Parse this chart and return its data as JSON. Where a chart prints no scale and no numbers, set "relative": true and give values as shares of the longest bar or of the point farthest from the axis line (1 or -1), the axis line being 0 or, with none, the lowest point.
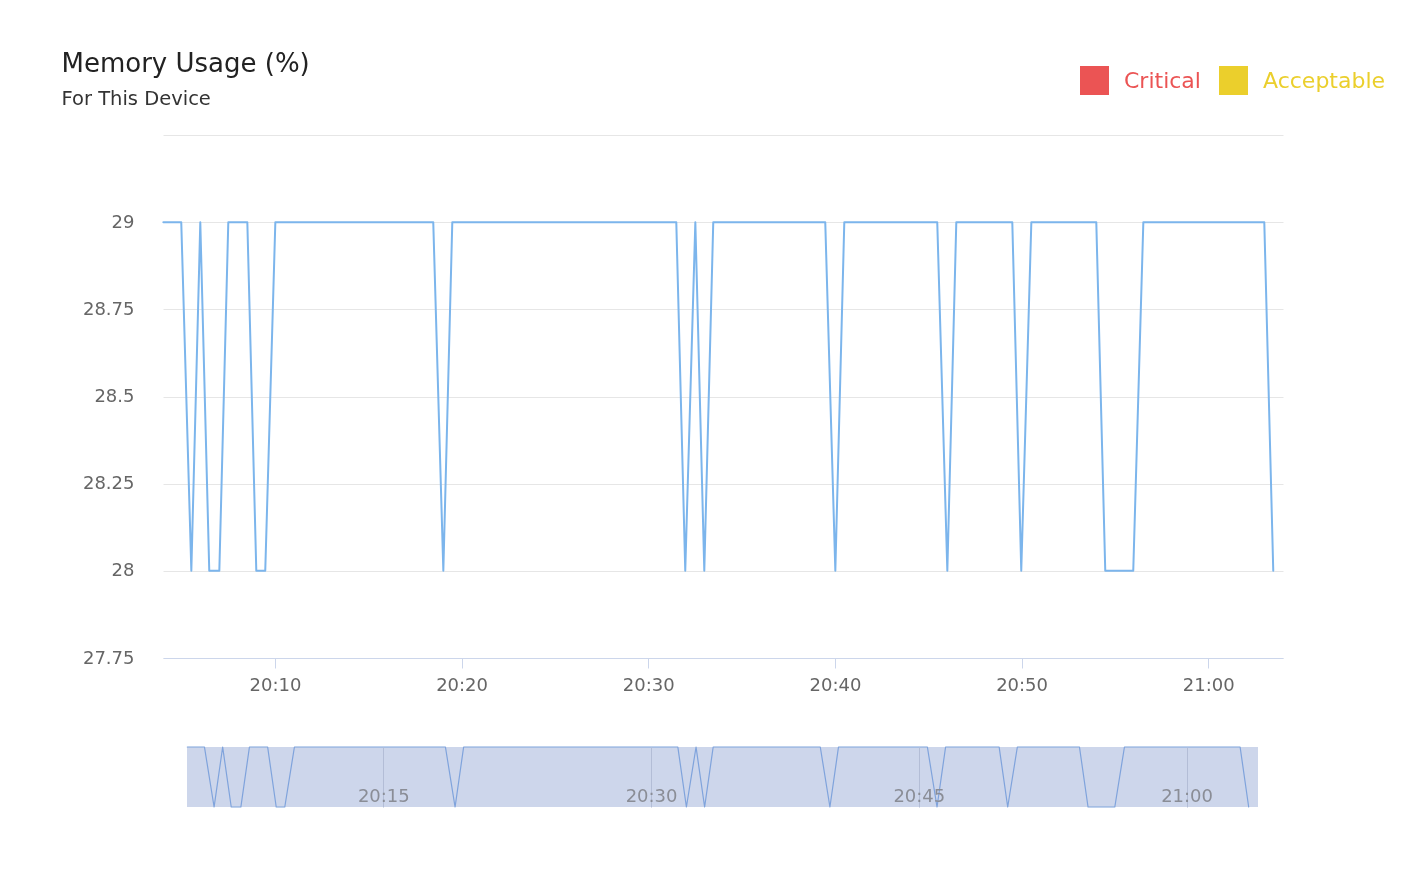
{
  "chart_data": [
    {
      "type": "line",
      "title": "Memory Usage (%)",
      "subtitle": "For This Device",
      "legend": "top right",
      "grid": "y",
      "xlim": [
        20.0667,
        21.0667
      ],
      "xticks": [
        {
          "value": 20.1667,
          "label": "20:10"
        },
        {
          "value": 20.3333,
          "label": "20:20"
        },
        {
          "value": 20.5,
          "label": "20:30"
        },
        {
          "value": 20.6667,
          "label": "20:40"
        },
        {
          "value": 20.8333,
          "label": "20:50"
        },
        {
          "value": 21,
          "label": "21:00"
        }
      ],
      "ylim": [
        27.75,
        29.25
      ],
      "yticks": [
        27.75,
        28,
        28.25,
        28.5,
        28.75,
        29,
        {
          "value": 29.25,
          "label": null
        }
      ],
      "x": [
        20.067,
        20.075,
        20.083,
        20.092,
        20.1,
        20.108,
        20.117,
        20.125,
        20.133,
        20.142,
        20.15,
        20.158,
        20.167,
        20.175,
        20.183,
        20.192,
        20.2,
        20.208,
        20.217,
        20.225,
        20.233,
        20.242,
        20.25,
        20.258,
        20.267,
        20.275,
        20.283,
        20.292,
        20.3,
        20.308,
        20.317,
        20.325,
        20.333,
        20.342,
        20.35,
        20.358,
        20.367,
        20.375,
        20.383,
        20.392,
        20.4,
        20.408,
        20.417,
        20.425,
        20.433,
        20.442,
        20.45,
        20.458,
        20.467,
        20.475,
        20.483,
        20.492,
        20.5,
        20.508,
        20.517,
        20.525,
        20.533,
        20.542,
        20.55,
        20.558,
        20.567,
        20.575,
        20.583,
        20.592,
        20.6,
        20.608,
        20.617,
        20.625,
        20.633,
        20.642,
        20.65,
        20.658,
        20.667,
        20.675,
        20.683,
        20.692,
        20.7,
        20.708,
        20.717,
        20.725,
        20.733,
        20.742,
        20.75,
        20.758,
        20.767,
        20.775,
        20.783,
        20.792,
        20.8,
        20.808,
        20.817,
        20.825,
        20.833,
        20.842,
        20.85,
        20.858,
        20.867,
        20.875,
        20.883,
        20.892,
        20.9,
        20.908,
        20.917,
        20.925,
        20.933,
        20.942,
        20.95,
        20.958,
        20.967,
        20.975,
        20.983,
        20.992,
        21.0,
        21.008,
        21.017,
        21.025,
        21.033,
        21.042,
        21.05,
        21.058
      ],
      "series": [
        {
          "color": "#7cb5ec",
          "values": [
            29,
            29,
            29,
            28,
            29,
            28,
            28,
            29,
            29,
            29,
            28,
            28,
            29,
            29,
            29,
            29,
            29,
            29,
            29,
            29,
            29,
            29,
            29,
            29,
            29,
            29,
            29,
            29,
            29,
            29,
            28,
            29,
            29,
            29,
            29,
            29,
            29,
            29,
            29,
            29,
            29,
            29,
            29,
            29,
            29,
            29,
            29,
            29,
            29,
            29,
            29,
            29,
            29,
            29,
            29,
            29,
            28,
            29,
            28,
            29,
            29,
            29,
            29,
            29,
            29,
            29,
            29,
            29,
            29,
            29,
            29,
            29,
            28,
            29,
            29,
            29,
            29,
            29,
            29,
            29,
            29,
            29,
            29,
            29,
            28,
            29,
            29,
            29,
            29,
            29,
            29,
            29,
            28,
            29,
            29,
            29,
            29,
            29,
            29,
            29,
            29,
            28,
            28,
            28,
            28,
            29,
            29,
            29,
            29,
            29,
            29,
            29,
            29,
            29,
            29,
            29,
            29,
            29,
            29,
            28
          ]
        },
        {
          "name": "Critical",
          "type": "area",
          "color": "#eb5454",
          "values": [
            null,
            null,
            null,
            null,
            null,
            null,
            null,
            null,
            null,
            null,
            null,
            null,
            null,
            null,
            null,
            null,
            null,
            null,
            null,
            null,
            null,
            null,
            null,
            null,
            null,
            null,
            null,
            null,
            null,
            null,
            null,
            null,
            null,
            null,
            null,
            null,
            null,
            null,
            null,
            null,
            null,
            null,
            null,
            null,
            null,
            null,
            null,
            null,
            null,
            null,
            null,
            null,
            null,
            null,
            null,
            null,
            null,
            null,
            null,
            null,
            null,
            null,
            null,
            null,
            null,
            null,
            null,
            null,
            null,
            null,
            null,
            null,
            null,
            null,
            null,
            null,
            null,
            null,
            null,
            null,
            null,
            null,
            null,
            null,
            null,
            null,
            null,
            null,
            null,
            null,
            null,
            null,
            null,
            null,
            null,
            null,
            null,
            null,
            null,
            null,
            null,
            null,
            null,
            null,
            null,
            null,
            null,
            null,
            null,
            null,
            null,
            null,
            null,
            null,
            null,
            null,
            null,
            null,
            null,
            null
          ]
        },
        {
          "name": "Acceptable",
          "type": "area",
          "color": "#ebcf2c",
          "values": [
            null,
            null,
            null,
            null,
            null,
            null,
            null,
            null,
            null,
            null,
            null,
            null,
            null,
            null,
            null,
            null,
            null,
            null,
            null,
            null,
            null,
            null,
            null,
            null,
            null,
            null,
            null,
            null,
            null,
            null,
            null,
            null,
            null,
            null,
            null,
            null,
            null,
            null,
            null,
            null,
            null,
            null,
            null,
            null,
            null,
            null,
            null,
            null,
            null,
            null,
            null,
            null,
            null,
            null,
            null,
            null,
            null,
            null,
            null,
            null,
            null,
            null,
            null,
            null,
            null,
            null,
            null,
            null,
            null,
            null,
            null,
            null,
            null,
            null,
            null,
            null,
            null,
            null,
            null,
            null,
            null,
            null,
            null,
            null,
            null,
            null,
            null,
            null,
            null,
            null,
            null,
            null,
            null,
            null,
            null,
            null,
            null,
            null,
            null,
            null,
            null,
            null,
            null,
            null,
            null,
            null,
            null,
            null,
            null,
            null,
            null,
            null,
            null,
            null,
            null,
            null,
            null,
            null,
            null,
            null
          ]
        }
      ]
    },
    {
      "type": "line",
      "relative": true,
      "grid": "x",
      "tick_labels": "x",
      "xlim": [
        20.0667,
        21.0667
      ],
      "xticks": [
        {
          "value": 20.25,
          "label": "20:15"
        },
        {
          "value": 20.5,
          "label": "20:30"
        },
        {
          "value": 20.75,
          "label": "20:45"
        },
        {
          "value": 21,
          "label": "21:00"
        }
      ],
      "bands": [
        {
          "axis": "x",
          "from": 20.0667,
          "to": 21.0667,
          "color": "#cdd6eb"
        }
      ],
      "x": [
        20.067,
        20.075,
        20.083,
        20.092,
        20.1,
        20.108,
        20.117,
        20.125,
        20.133,
        20.142,
        20.15,
        20.158,
        20.167,
        20.175,
        20.183,
        20.192,
        20.2,
        20.208,
        20.217,
        20.225,
        20.233,
        20.242,
        20.25,
        20.258,
        20.267,
        20.275,
        20.283,
        20.292,
        20.3,
        20.308,
        20.317,
        20.325,
        20.333,
        20.342,
        20.35,
        20.358,
        20.367,
        20.375,
        20.383,
        20.392,
        20.4,
        20.408,
        20.417,
        20.425,
        20.433,
        20.442,
        20.45,
        20.458,
        20.467,
        20.475,
        20.483,
        20.492,
        20.5,
        20.508,
        20.517,
        20.525,
        20.533,
        20.542,
        20.55,
        20.558,
        20.567,
        20.575,
        20.583,
        20.592,
        20.6,
        20.608,
        20.617,
        20.625,
        20.633,
        20.642,
        20.65,
        20.658,
        20.667,
        20.675,
        20.683,
        20.692,
        20.7,
        20.708,
        20.717,
        20.725,
        20.733,
        20.742,
        20.75,
        20.758,
        20.767,
        20.775,
        20.783,
        20.792,
        20.8,
        20.808,
        20.817,
        20.825,
        20.833,
        20.842,
        20.85,
        20.858,
        20.867,
        20.875,
        20.883,
        20.892,
        20.9,
        20.908,
        20.917,
        20.925,
        20.933,
        20.942,
        20.95,
        20.958,
        20.967,
        20.975,
        20.983,
        20.992,
        21.0,
        21.008,
        21.017,
        21.025,
        21.033,
        21.042,
        21.05,
        21.058
      ],
      "series": [
        {
          "color": "#7fa3dc",
          "values": [
            1,
            1,
            1,
            0,
            1,
            0,
            0,
            1,
            1,
            1,
            0,
            0,
            1,
            1,
            1,
            1,
            1,
            1,
            1,
            1,
            1,
            1,
            1,
            1,
            1,
            1,
            1,
            1,
            1,
            1,
            0,
            1,
            1,
            1,
            1,
            1,
            1,
            1,
            1,
            1,
            1,
            1,
            1,
            1,
            1,
            1,
            1,
            1,
            1,
            1,
            1,
            1,
            1,
            1,
            1,
            1,
            0,
            1,
            0,
            1,
            1,
            1,
            1,
            1,
            1,
            1,
            1,
            1,
            1,
            1,
            1,
            1,
            0,
            1,
            1,
            1,
            1,
            1,
            1,
            1,
            1,
            1,
            1,
            1,
            0,
            1,
            1,
            1,
            1,
            1,
            1,
            1,
            0,
            1,
            1,
            1,
            1,
            1,
            1,
            1,
            1,
            0,
            0,
            0,
            0,
            1,
            1,
            1,
            1,
            1,
            1,
            1,
            1,
            1,
            1,
            1,
            1,
            1,
            1,
            0
          ]
        }
      ]
    }
  ]
}
